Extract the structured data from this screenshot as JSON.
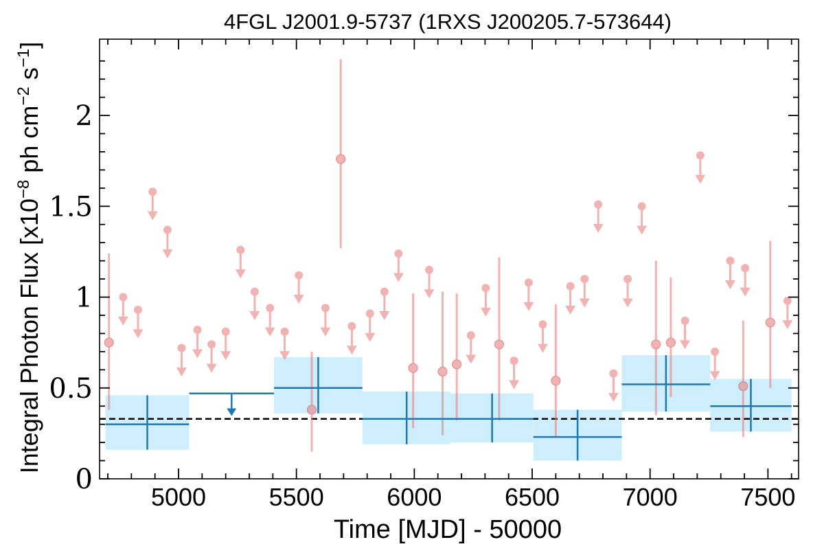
{
  "chart_data": {
    "type": "scatter",
    "title": "4FGL J2001.9-5737 (1RXS J200205.7-573644)",
    "xlabel": "Time [MJD] - 50000",
    "ylabel_main": "Integral Photon Flux [x10",
    "ylabel_exp": "−8",
    "ylabel_mid": " ph cm",
    "ylabel_exp2": "−2",
    "ylabel_mid2": " s",
    "ylabel_exp3": "−1",
    "ylabel_end": "]",
    "xlim": [
      4665,
      7630
    ],
    "ylim": [
      0,
      2.42
    ],
    "x_ticks": [
      5000,
      5500,
      6000,
      6500,
      7000,
      7500
    ],
    "x_tick_labels": [
      "5000",
      "5500",
      "6000",
      "6500",
      "7000",
      "7500"
    ],
    "y_ticks": [
      0,
      0.5,
      1,
      1.5,
      2
    ],
    "y_tick_labels": [
      "0",
      "0.5",
      "1",
      "1.5",
      "2"
    ],
    "reference_level": 0.33,
    "colors": {
      "short_bin": "#e88080",
      "long_bin": "#1f77b4",
      "long_bin_band": "#cdeefc",
      "reference_line": "#000000"
    },
    "short_bin_upper_limits": [
      {
        "x": 4765,
        "y": 1.0
      },
      {
        "x": 4828,
        "y": 0.93
      },
      {
        "x": 4890,
        "y": 1.58
      },
      {
        "x": 4953,
        "y": 1.37
      },
      {
        "x": 5013,
        "y": 0.72
      },
      {
        "x": 5080,
        "y": 0.82
      },
      {
        "x": 5140,
        "y": 0.74
      },
      {
        "x": 5200,
        "y": 0.81
      },
      {
        "x": 5263,
        "y": 1.26
      },
      {
        "x": 5323,
        "y": 1.03
      },
      {
        "x": 5388,
        "y": 0.94
      },
      {
        "x": 5450,
        "y": 0.81
      },
      {
        "x": 5510,
        "y": 1.12
      },
      {
        "x": 5623,
        "y": 0.94
      },
      {
        "x": 5735,
        "y": 0.84
      },
      {
        "x": 5812,
        "y": 0.91
      },
      {
        "x": 5873,
        "y": 1.03
      },
      {
        "x": 5933,
        "y": 1.24
      },
      {
        "x": 6063,
        "y": 1.15
      },
      {
        "x": 6240,
        "y": 0.79
      },
      {
        "x": 6303,
        "y": 1.05
      },
      {
        "x": 6423,
        "y": 0.65
      },
      {
        "x": 6485,
        "y": 1.08
      },
      {
        "x": 6545,
        "y": 0.85
      },
      {
        "x": 6662,
        "y": 1.06
      },
      {
        "x": 6722,
        "y": 1.1
      },
      {
        "x": 6780,
        "y": 1.51
      },
      {
        "x": 6845,
        "y": 0.58
      },
      {
        "x": 6905,
        "y": 1.1
      },
      {
        "x": 6965,
        "y": 1.5
      },
      {
        "x": 7148,
        "y": 0.87
      },
      {
        "x": 7213,
        "y": 1.78
      },
      {
        "x": 7275,
        "y": 0.7
      },
      {
        "x": 7340,
        "y": 1.2
      },
      {
        "x": 7403,
        "y": 1.16
      },
      {
        "x": 7583,
        "y": 0.98
      }
    ],
    "short_bin_detections": [
      {
        "x": 4705,
        "y": 0.75,
        "lo": 0.38,
        "hi": 1.24
      },
      {
        "x": 5565,
        "y": 0.38,
        "lo": 0.15,
        "hi": 0.7
      },
      {
        "x": 5688,
        "y": 1.76,
        "lo": 1.27,
        "hi": 2.31
      },
      {
        "x": 5995,
        "y": 0.61,
        "lo": 0.28,
        "hi": 1.02
      },
      {
        "x": 6120,
        "y": 0.59,
        "lo": 0.24,
        "hi": 1.03
      },
      {
        "x": 6180,
        "y": 0.63,
        "lo": 0.32,
        "hi": 1.02
      },
      {
        "x": 6360,
        "y": 0.74,
        "lo": 0.32,
        "hi": 1.22
      },
      {
        "x": 6600,
        "y": 0.54,
        "lo": 0.23,
        "hi": 0.96
      },
      {
        "x": 7025,
        "y": 0.74,
        "lo": 0.35,
        "hi": 1.2
      },
      {
        "x": 7088,
        "y": 0.75,
        "lo": 0.45,
        "hi": 1.11
      },
      {
        "x": 7395,
        "y": 0.51,
        "lo": 0.23,
        "hi": 0.87
      },
      {
        "x": 7510,
        "y": 0.86,
        "lo": 0.5,
        "hi": 1.31
      }
    ],
    "long_bins": [
      {
        "x0": 4690,
        "x1": 5045,
        "y": 0.3,
        "lo": 0.16,
        "hi": 0.46,
        "upper_limit": false
      },
      {
        "x0": 5045,
        "x1": 5405,
        "y": 0.47,
        "lo": null,
        "hi": null,
        "upper_limit": true
      },
      {
        "x0": 5405,
        "x1": 5780,
        "y": 0.5,
        "lo": 0.36,
        "hi": 0.67,
        "upper_limit": false
      },
      {
        "x0": 5780,
        "x1": 6155,
        "y": 0.33,
        "lo": 0.19,
        "hi": 0.48,
        "upper_limit": false
      },
      {
        "x0": 6155,
        "x1": 6505,
        "y": 0.33,
        "lo": 0.2,
        "hi": 0.47,
        "upper_limit": false
      },
      {
        "x0": 6505,
        "x1": 6880,
        "y": 0.23,
        "lo": 0.1,
        "hi": 0.38,
        "upper_limit": false
      },
      {
        "x0": 6880,
        "x1": 7255,
        "y": 0.52,
        "lo": 0.37,
        "hi": 0.68,
        "upper_limit": false
      },
      {
        "x0": 7255,
        "x1": 7600,
        "y": 0.4,
        "lo": 0.26,
        "hi": 0.55,
        "upper_limit": false
      }
    ]
  }
}
